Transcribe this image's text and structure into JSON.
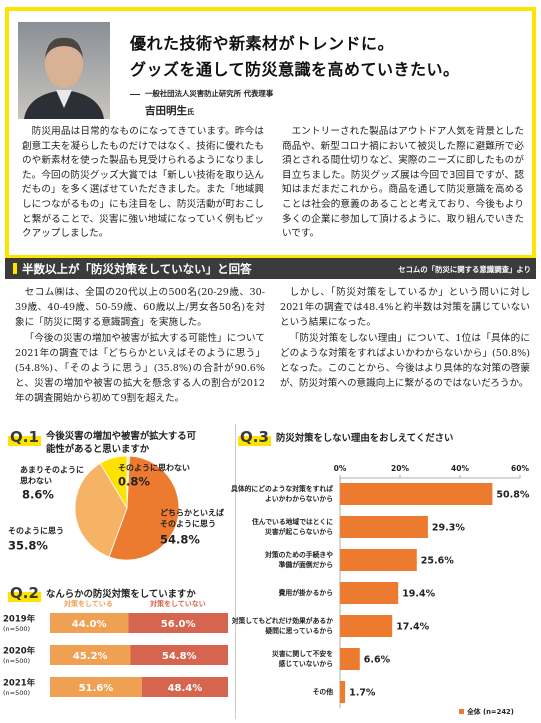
{
  "article": {
    "headline": [
      "優れた技術や新素材がトレンドに。",
      "グッズを通して防災意識を高めていきたい。"
    ],
    "affiliation": "一般社団法人災害防止研究所 代表理事",
    "name": "吉田明生",
    "honorific": "氏",
    "columns": [
      "防災用品は日常的なものになってきています。昨今は創意工夫を凝らしたものだけではなく、技術に優れたものや新素材を使った製品も見受けられるようになりました。今回の防災グッズ大賞では「新しい技術を取り込んだもの」を多く選ばせていただきました。また「地域興しにつながるもの」にも注目をし、防災活動が町おこしと繋がることで、災害に強い地域になっていく例もピックアップしました。",
      "エントリーされた製品はアウトドア人気を背景とした商品や、新型コロナ禍において被災した際に避難所で必須とされる間仕切りなど、実際のニーズに即したものが目立ちました。防災グッズ展は今回で3回目ですが、認知はまだまだこれから。商品を通して防災意識を高めることは社会的意義のあることと考えており、今後もより多くの企業に参加して頂けるように、取り組んでいきたいです。"
    ]
  },
  "section": {
    "title": "半数以上が「防災対策をしていない」と回答",
    "source": "セコムの「防災に関する意識調査」より",
    "columns": [
      [
        "セコム㈱は、全国の20代以上の500名(20-29歳、30-39歳、40-49歳、50-59歳、60歳以上/男女各50名)を対象に「防災に関する意識調査」を実施した。",
        "「今後の災害の増加や被害が拡大する可能性」について2021年の調査では「どちらかといえばそのように思う」(54.8%)、「そのように思う」(35.8%)の合計が90.6%と、災害の増加や被害の拡大を懸念する人の割合が2012年の調査開始から初めて9割を超えた。"
      ],
      [
        "しかし、「防災対策をしているか」という問いに対し2021年の調査では48.4%と約半数は対策を講じていないという結果になった。",
        "「防災対策をしない理由」について、1位は「具体的にどのような対策をすればよいかわからないから」(50.8%)となった。このことから、今後はより具体的な対策の啓蒙が、防災対策への意識向上に繋がるのではないだろうか。"
      ]
    ]
  },
  "chart_data": [
    {
      "type": "pie",
      "label": "Q.1",
      "title": "今後災害の増加や被害が拡大する可能性があると思いますか",
      "categories": [
        [
          "そのように思わない"
        ],
        [
          "どちらかといえば",
          "そのように思う"
        ],
        [
          "そのように思う"
        ],
        [
          "あまりそのように",
          "思わない"
        ]
      ],
      "values": [
        0.8,
        54.8,
        35.8,
        8.6
      ],
      "value_labels": [
        "0.8%",
        "54.8%",
        "35.8%",
        "8.6%"
      ],
      "colors": [
        "#fdf0b8",
        "#ec7a2f",
        "#f6b366",
        "#ffe100"
      ]
    },
    {
      "type": "stacked-bar",
      "label": "Q.2",
      "title": "なんらかの防災対策をしていますか",
      "categories": [
        "2019年",
        "2020年",
        "2021年"
      ],
      "category_notes": [
        "(n=500)",
        "(n=500)",
        "(n=500)"
      ],
      "series": [
        {
          "name": "対策をしている",
          "color": "#f0a052",
          "values": [
            44.0,
            45.2,
            51.6
          ],
          "value_labels": [
            "44.0%",
            "45.2%",
            "51.6%"
          ]
        },
        {
          "name": "対策をしていない",
          "color": "#d5654e",
          "values": [
            56.0,
            54.8,
            48.4
          ],
          "value_labels": [
            "56.0%",
            "54.8%",
            "48.4%"
          ]
        }
      ]
    },
    {
      "type": "hbar",
      "label": "Q.3",
      "title": "防災対策をしない理由をおしえてください",
      "categories": [
        [
          "具体的にどのような対策をすれば",
          "よいかわからないから"
        ],
        [
          "住んでいる地域ではとくに",
          "災害が起こらないから"
        ],
        [
          "対策のための手続きや",
          "準備が面倒だから"
        ],
        [
          "費用が掛かるから"
        ],
        [
          "対策してもどれだけ効果があるか",
          "疑問に思っているから"
        ],
        [
          "災害に関して不安を",
          "感じていないから"
        ],
        [
          "その他"
        ]
      ],
      "values": [
        50.8,
        29.3,
        25.6,
        19.4,
        17.4,
        6.6,
        1.7
      ],
      "value_labels": [
        "50.8%",
        "29.3%",
        "25.6%",
        "19.4%",
        "17.4%",
        "6.6%",
        "1.7%"
      ],
      "color": "#ec7a2f",
      "xlim": [
        0,
        60
      ],
      "xticks": [
        {
          "value": 0,
          "label": "0%"
        },
        {
          "value": 20,
          "label": "20%"
        },
        {
          "value": 40,
          "label": "40%"
        },
        {
          "value": 60,
          "label": "60%"
        }
      ],
      "legend": "全体 (n=242)"
    }
  ]
}
